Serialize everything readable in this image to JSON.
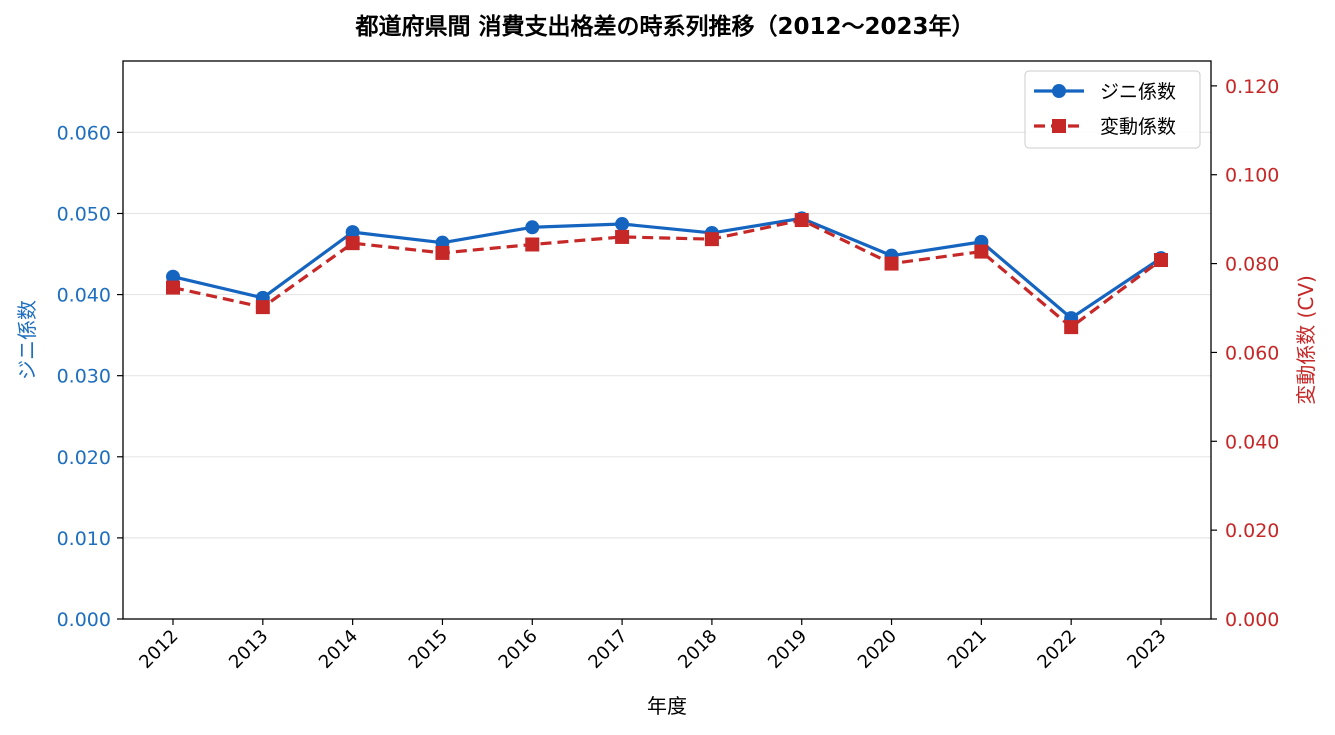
{
  "chart_data": {
    "type": "line",
    "title": "都道府県間 消費支出格差の時系列推移（2012〜2023年）",
    "xlabel": "年度",
    "ylabel_left": "ジニ係数",
    "ylabel_right": "変動係数 (CV)",
    "categories": [
      "2012",
      "2013",
      "2014",
      "2015",
      "2016",
      "2017",
      "2018",
      "2019",
      "2020",
      "2021",
      "2022",
      "2023"
    ],
    "ylim_left": [
      0,
      0.0688
    ],
    "ylim_right": [
      0,
      0.1256
    ],
    "yticks_left": [
      "0.000",
      "0.010",
      "0.020",
      "0.030",
      "0.040",
      "0.050",
      "0.060"
    ],
    "yticks_left_values": [
      0,
      0.01,
      0.02,
      0.03,
      0.04,
      0.05,
      0.06
    ],
    "yticks_right": [
      "0.000",
      "0.020",
      "0.040",
      "0.060",
      "0.080",
      "0.100",
      "0.120"
    ],
    "yticks_right_values": [
      0,
      0.02,
      0.04,
      0.06,
      0.08,
      0.1,
      0.12
    ],
    "grid": "horizontal",
    "legend_position": "top-right",
    "series": [
      {
        "name": "ジニ係数",
        "axis": "left",
        "color": "#1565c0",
        "marker": "circle",
        "line": "solid",
        "values": [
          0.0422,
          0.0396,
          0.0477,
          0.0464,
          0.0483,
          0.0487,
          0.0476,
          0.0494,
          0.0448,
          0.0465,
          0.0371,
          0.0445
        ]
      },
      {
        "name": "変動係数",
        "axis": "right",
        "color": "#c62828",
        "marker": "square",
        "line": "dashed",
        "values": [
          0.0746,
          0.0702,
          0.0846,
          0.0824,
          0.0843,
          0.086,
          0.0855,
          0.0898,
          0.08,
          0.0827,
          0.0657,
          0.0808
        ]
      }
    ],
    "colors": {
      "left_axis": "#1f6fbf",
      "right_axis": "#c62828",
      "grid": "#e6e6e6"
    }
  }
}
